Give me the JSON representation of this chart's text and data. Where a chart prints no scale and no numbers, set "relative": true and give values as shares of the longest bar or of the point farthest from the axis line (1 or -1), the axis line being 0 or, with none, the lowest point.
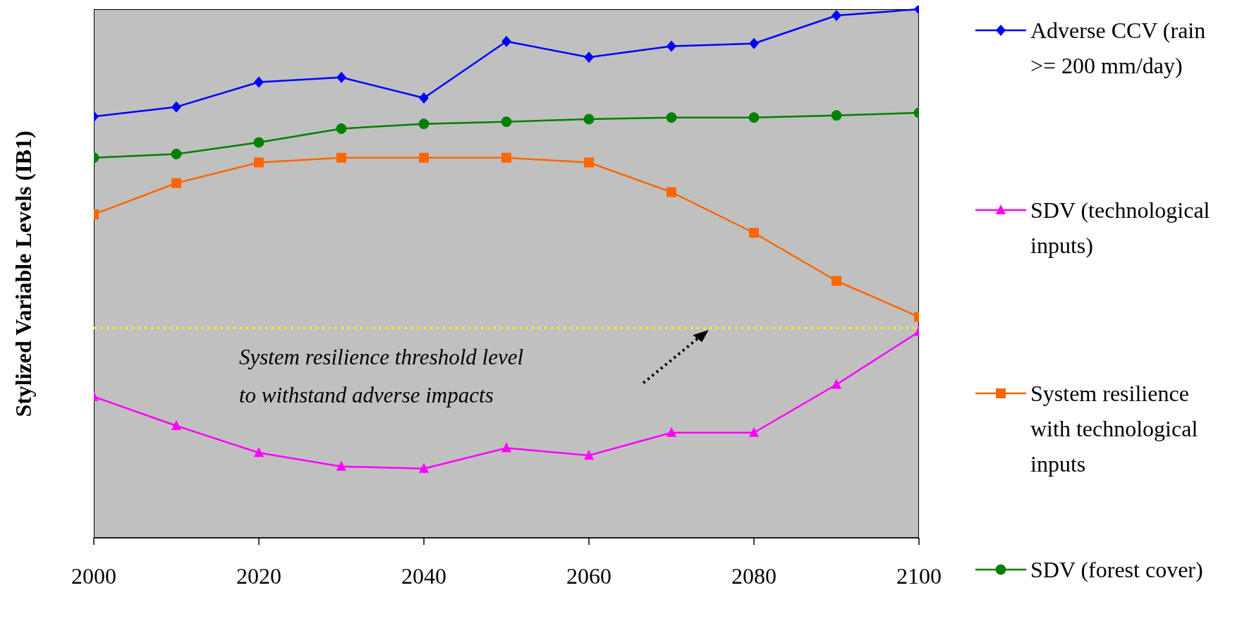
{
  "chart_data": {
    "type": "line",
    "relative": true,
    "ylabel": "Stylized Variable Levels (IB1)",
    "x": [
      2000,
      2010,
      2020,
      2030,
      2040,
      2050,
      2060,
      2070,
      2080,
      2090,
      2100
    ],
    "xlim": [
      2000,
      2100
    ],
    "xticks": [
      2000,
      2020,
      2040,
      2060,
      2080,
      2100
    ],
    "legend": "right",
    "line_style": "solid",
    "series": [
      {
        "name": "Adverse CCV (rain >= 200 mm/day)",
        "color": "#0000ff",
        "marker": "diamond",
        "values": [
          0.797,
          0.815,
          0.862,
          0.871,
          0.832,
          0.939,
          0.909,
          0.93,
          0.935,
          0.988,
          1
        ]
      },
      {
        "name": "SDV (technological inputs)",
        "color": "#ff00ff",
        "marker": "triangle",
        "values": [
          0.267,
          0.212,
          0.161,
          0.135,
          0.131,
          0.17,
          0.156,
          0.199,
          0.199,
          0.29,
          0.39
        ]
      },
      {
        "name": "System resilience with technological inputs",
        "color": "#ff6600",
        "marker": "square",
        "values": [
          0.612,
          0.671,
          0.71,
          0.719,
          0.719,
          0.719,
          0.71,
          0.654,
          0.577,
          0.486,
          0.418
        ]
      },
      {
        "name": "SDV (forest cover)",
        "color": "#008000",
        "marker": "circle",
        "values": [
          0.719,
          0.726,
          0.748,
          0.774,
          0.783,
          0.787,
          0.792,
          0.795,
          0.795,
          0.799,
          0.804
        ]
      }
    ],
    "ref_lines": [
      {
        "axis": "y",
        "value": 0.397,
        "label": "System resilience threshold level\nto withstand adverse impacts",
        "color": "#ffff00",
        "line_style": "dotted"
      }
    ]
  }
}
